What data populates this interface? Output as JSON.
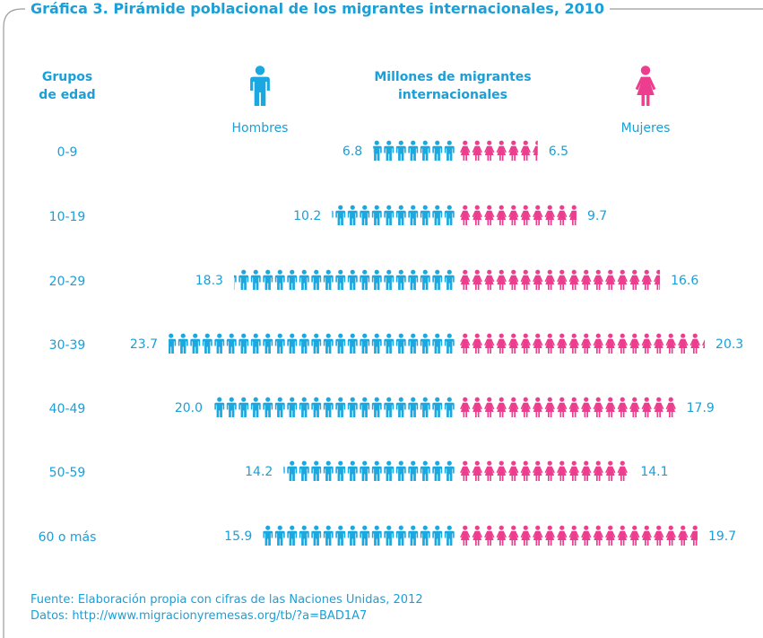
{
  "chart_data": {
    "type": "pyramid",
    "title": "Gráfica 3. Pirámide poblacional de los migrantes internacionales, 2010",
    "category_label": "Grupos de edad",
    "value_label": "Millones de migrantes internacionales",
    "categories": [
      "0-9",
      "10-19",
      "20-29",
      "30-39",
      "40-49",
      "50-59",
      "60 o más"
    ],
    "series": [
      {
        "name": "Hombres",
        "color": "#1ba8e0",
        "values": [
          6.8,
          10.2,
          18.3,
          23.7,
          20.0,
          14.2,
          15.9
        ],
        "value_labels": [
          "6.8",
          "10.2",
          "18.3",
          "23.7",
          "20.0",
          "14.2",
          "15.9"
        ]
      },
      {
        "name": "Mujeres",
        "color": "#ec3d8e",
        "values": [
          6.5,
          9.7,
          16.6,
          20.3,
          17.9,
          14.1,
          19.7
        ]
      }
    ],
    "source": "Fuente: Elaboración propia con cifras de las Naciones Unidas, 2012",
    "data_note": "Datos: http://www.migracionyremesas.org/tb/?a=BAD1A7"
  }
}
